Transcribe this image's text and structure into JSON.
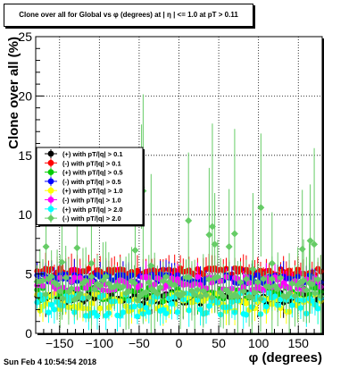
{
  "timestamp": "Sun Feb  4 10:54:54 2018",
  "chart_data": {
    "type": "scatter",
    "title": "Clone  over all for Global vs φ (degrees) at | η | <= 1.0 at pT > 0.11",
    "xlabel": "φ (degrees)",
    "ylabel": "Clone  over all (%)",
    "xlim": [
      -180,
      180
    ],
    "ylim": [
      0,
      25
    ],
    "xticks": [
      -150,
      -100,
      -50,
      0,
      50,
      100,
      150
    ],
    "yticks": [
      0,
      5,
      10,
      15,
      20,
      25
    ],
    "grid": true,
    "legend_position": "left-middle",
    "series": [
      {
        "name": "(+) with pT/|q| > 0.1",
        "color": "#000000",
        "marker": "circle",
        "level": 3.0,
        "spread": 0.5
      },
      {
        "name": "(-) with pT/|q| > 0.1",
        "color": "#ff0000",
        "marker": "circle",
        "level": 5.2,
        "spread": 0.3
      },
      {
        "name": "(+) with pT/|q| > 0.5",
        "color": "#00cc00",
        "marker": "circle",
        "level": 3.3,
        "spread": 0.6
      },
      {
        "name": "(-) with pT/|q| > 0.5",
        "color": "#0000ff",
        "marker": "circle",
        "level": 4.6,
        "spread": 0.4
      },
      {
        "name": "(+) with pT/|q| > 1.0",
        "color": "#ffff00",
        "marker": "circle",
        "level": 2.6,
        "spread": 0.8
      },
      {
        "name": "(-) with pT/|q| > 1.0",
        "color": "#ff00ff",
        "marker": "circle",
        "level": 4.2,
        "spread": 0.6
      },
      {
        "name": "(+) with pT/|q| > 2.0",
        "color": "#00ffff",
        "marker": "circle",
        "level": 2.4,
        "spread": 1.0
      },
      {
        "name": "(-) with pT/|q| > 2.0",
        "color": "#66cc66",
        "marker": "diamond",
        "level": 3.8,
        "spread": 1.0
      }
    ],
    "highlights": [
      {
        "x": -167,
        "y": 7.3
      },
      {
        "x": -147,
        "y": 6.0
      },
      {
        "x": -128,
        "y": 7.2
      },
      {
        "x": -110,
        "y": 5.9
      },
      {
        "x": -55,
        "y": 7.0
      },
      {
        "x": -47,
        "y": 12.3
      },
      {
        "x": -45,
        "y": 12.0
      },
      {
        "x": -35,
        "y": 5.7
      },
      {
        "x": 12,
        "y": 9.5
      },
      {
        "x": 38,
        "y": 8.3
      },
      {
        "x": 42,
        "y": 9.0
      },
      {
        "x": 45,
        "y": 7.5
      },
      {
        "x": 63,
        "y": 7.3
      },
      {
        "x": 70,
        "y": 8.4
      },
      {
        "x": 93,
        "y": 5.4
      },
      {
        "x": 103,
        "y": 10.6
      },
      {
        "x": 117,
        "y": 5.9
      },
      {
        "x": 155,
        "y": 7.1
      },
      {
        "x": 165,
        "y": 7.8
      },
      {
        "x": 170,
        "y": 7.5
      }
    ]
  }
}
